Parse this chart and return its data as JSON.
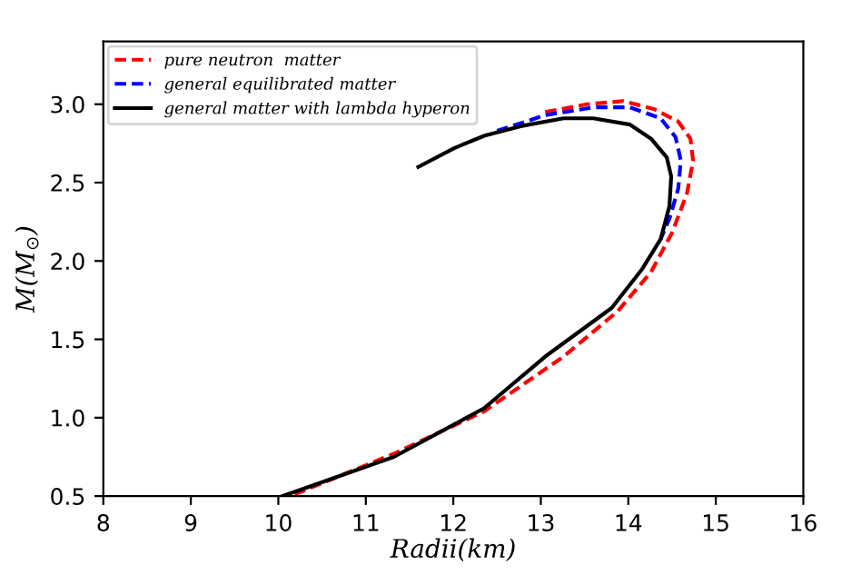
{
  "chart_data": {
    "type": "line",
    "xlabel": "Radii(km)",
    "ylabel": "M(M$_{⊙}$)",
    "xlim": [
      8,
      16
    ],
    "ylim": [
      0.5,
      3.4
    ],
    "xticks": [
      8,
      9,
      10,
      11,
      12,
      13,
      14,
      15,
      16
    ],
    "yticks": [
      0.5,
      {
        "value": 1,
        "label": "1.0"
      },
      1.5,
      {
        "value": 2,
        "label": "2.0"
      },
      2.5,
      {
        "value": 3,
        "label": "3.0"
      }
    ],
    "grid": false,
    "legend": "top left",
    "marker": "none",
    "series": [
      {
        "name": "pure neutron  matter",
        "color": "#ff0000",
        "line_style": "dashed",
        "x": [
          10.14,
          11.32,
          12.35,
          13.26,
          13.88,
          14.26,
          14.5,
          14.67,
          14.74,
          14.71,
          14.57,
          14.29,
          13.94,
          13.53,
          13.05
        ],
        "values": [
          0.5,
          0.77,
          1.04,
          1.39,
          1.68,
          1.93,
          2.18,
          2.43,
          2.64,
          2.78,
          2.89,
          2.97,
          3.02,
          3.0,
          2.95
        ]
      },
      {
        "name": "general equilibrated matter",
        "color": "#0000ff",
        "line_style": "dashed",
        "x": [
          14.37,
          14.47,
          14.57,
          14.6,
          14.54,
          14.37,
          14.02,
          13.6,
          13.05,
          12.5
        ],
        "values": [
          2.14,
          2.27,
          2.46,
          2.64,
          2.79,
          2.91,
          2.98,
          2.98,
          2.93,
          2.83
        ]
      },
      {
        "name": "general matter with lambda hyperon",
        "color": "#000000",
        "line_style": "solid",
        "x": [
          10.05,
          11.32,
          12.35,
          13.05,
          13.81,
          14.16,
          14.37,
          14.47,
          14.49,
          14.44,
          14.26,
          14.02,
          13.6,
          13.26,
          12.77,
          12.36,
          12.01,
          11.6
        ],
        "values": [
          0.5,
          0.75,
          1.06,
          1.39,
          1.7,
          1.95,
          2.14,
          2.35,
          2.54,
          2.66,
          2.78,
          2.87,
          2.91,
          2.91,
          2.86,
          2.8,
          2.72,
          2.6
        ]
      }
    ]
  }
}
